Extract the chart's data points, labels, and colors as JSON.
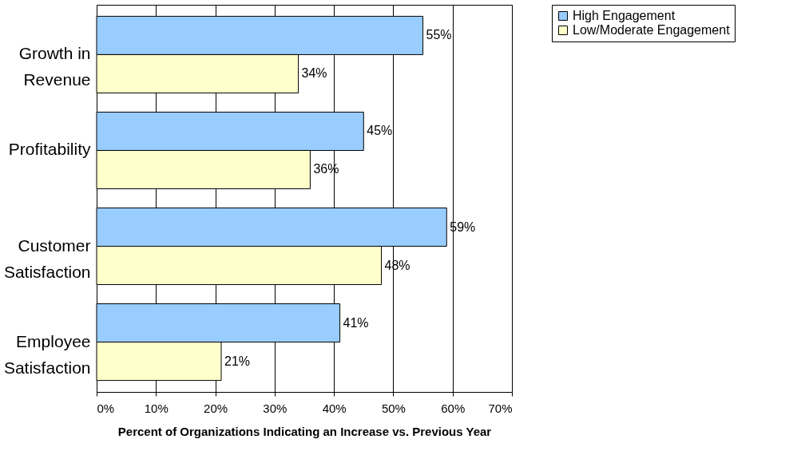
{
  "chart_data": {
    "type": "bar",
    "orientation": "horizontal",
    "xlabel": "Percent of Organizations Indicating an Increase vs. Previous Year",
    "categories": [
      "Growth in\nRevenue",
      "Profitability",
      "Customer\nSatisfaction",
      "Employee\nSatisfaction"
    ],
    "series": [
      {
        "name": "High Engagement",
        "color": "#99ccff",
        "values": [
          55,
          45,
          59,
          41
        ],
        "value_labels": [
          "55%",
          "45%",
          "59%",
          "41%"
        ]
      },
      {
        "name": "Low/Moderate Engagement",
        "color": "#ffffcc",
        "values": [
          34,
          36,
          48,
          21
        ],
        "value_labels": [
          "34%",
          "36%",
          "48%",
          "21%"
        ]
      }
    ],
    "xlim": [
      0,
      70
    ],
    "xticks": [
      {
        "value": 0,
        "label": "0%"
      },
      {
        "value": 10,
        "label": "10%"
      },
      {
        "value": 20,
        "label": "20%"
      },
      {
        "value": 30,
        "label": "30%"
      },
      {
        "value": 40,
        "label": "40%"
      },
      {
        "value": 50,
        "label": "50%"
      },
      {
        "value": 60,
        "label": "60%"
      },
      {
        "value": 70,
        "label": "70%"
      }
    ],
    "grid": "x",
    "legend": "right"
  }
}
